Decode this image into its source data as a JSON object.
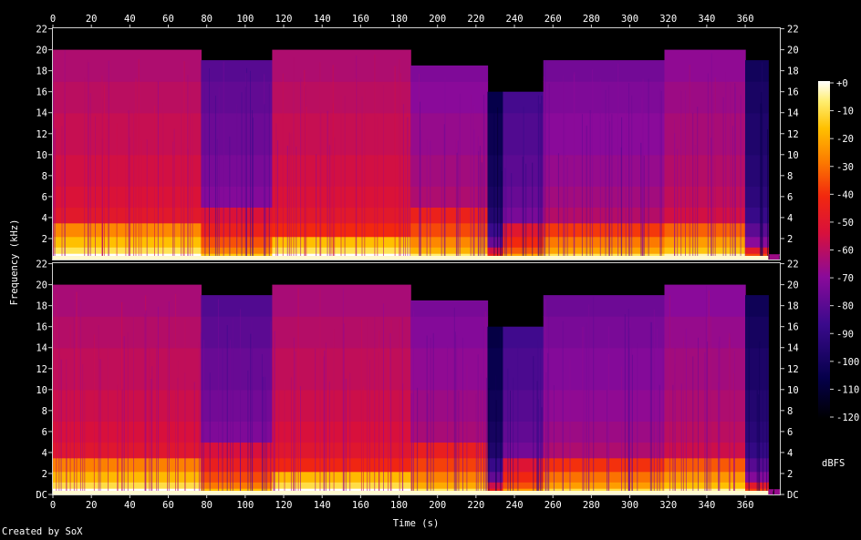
{
  "chart_data": {
    "type": "heatmap",
    "xlabel": "Time (s)",
    "ylabel": "Frequency (kHz)",
    "x_ticks": [
      0,
      20,
      40,
      60,
      80,
      100,
      120,
      140,
      160,
      180,
      200,
      220,
      240,
      260,
      280,
      300,
      320,
      340,
      360
    ],
    "xlim": [
      0,
      378
    ],
    "y_tick_labels_top": [
      "2",
      "4",
      "6",
      "8",
      "10",
      "12",
      "14",
      "16",
      "18",
      "20",
      "22"
    ],
    "y_tick_labels_bottom": [
      "DC",
      "2",
      "4",
      "6",
      "8",
      "10",
      "12",
      "14",
      "16",
      "18",
      "20",
      "22"
    ],
    "ylim_khz": [
      0,
      22.05
    ],
    "channels": 2,
    "colorbar": {
      "label": "dBFS",
      "ticks": [
        "+0",
        "-10",
        "-20",
        "-30",
        "-40",
        "-50",
        "-60",
        "-70",
        "-80",
        "-90",
        "-100",
        "-110",
        "-120"
      ],
      "range": [
        -120,
        0
      ]
    },
    "segments": [
      {
        "start": 0,
        "end": 77,
        "level": 0.5,
        "cutoff_khz": 20.0,
        "bass_khz": 3.5
      },
      {
        "start": 77,
        "end": 114,
        "level": 0.35,
        "cutoff_khz": 19.0,
        "bass_khz": 6.0
      },
      {
        "start": 114,
        "end": 186,
        "level": 0.5,
        "cutoff_khz": 20.0,
        "bass_khz": 3.0
      },
      {
        "start": 186,
        "end": 226,
        "level": 0.42,
        "cutoff_khz": 18.5,
        "bass_khz": 5.0
      },
      {
        "start": 226,
        "end": 234,
        "level": 0.12,
        "cutoff_khz": 16.0,
        "bass_khz": 2.0
      },
      {
        "start": 234,
        "end": 255,
        "level": 0.3,
        "cutoff_khz": 16.0,
        "bass_khz": 4.5
      },
      {
        "start": 255,
        "end": 318,
        "level": 0.4,
        "cutoff_khz": 19.0,
        "bass_khz": 4.0
      },
      {
        "start": 318,
        "end": 360,
        "level": 0.45,
        "cutoff_khz": 20.0,
        "bass_khz": 3.5
      },
      {
        "start": 360,
        "end": 372,
        "level": 0.18,
        "cutoff_khz": 19.0,
        "bass_khz": 1.5
      },
      {
        "start": 372,
        "end": 378,
        "level": 0.05,
        "cutoff_khz": 0.5,
        "bass_khz": 0.3
      }
    ],
    "credit": "Created by SoX"
  }
}
